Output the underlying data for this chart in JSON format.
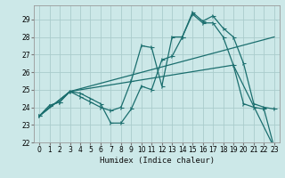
{
  "bg_color": "#cce8e8",
  "grid_color": "#aacccc",
  "line_color": "#1a6e6e",
  "xlabel": "Humidex (Indice chaleur)",
  "xlim": [
    -0.5,
    23.5
  ],
  "ylim": [
    22.0,
    29.8
  ],
  "yticks": [
    22,
    23,
    24,
    25,
    26,
    27,
    28,
    29
  ],
  "xticks": [
    0,
    1,
    2,
    3,
    4,
    5,
    6,
    7,
    8,
    9,
    10,
    11,
    12,
    13,
    14,
    15,
    16,
    17,
    18,
    19,
    20,
    21,
    22,
    23
  ],
  "line1_x": [
    0,
    1,
    2,
    3,
    4,
    5,
    6,
    7,
    8,
    9,
    10,
    11,
    12,
    13,
    14,
    15,
    16,
    17,
    18,
    19,
    20,
    21,
    22,
    23
  ],
  "line1_y": [
    23.5,
    24.1,
    24.3,
    24.9,
    24.8,
    24.5,
    24.2,
    23.1,
    23.1,
    23.9,
    25.2,
    25.0,
    26.7,
    26.9,
    28.0,
    29.4,
    28.9,
    29.2,
    28.5,
    28.0,
    26.5,
    24.2,
    24.0,
    23.9
  ],
  "line2_x": [
    0,
    1,
    2,
    3,
    4,
    5,
    6,
    7,
    8,
    9,
    10,
    11,
    12,
    13,
    14,
    15,
    16,
    17,
    18,
    19,
    20,
    21,
    22,
    23
  ],
  "line2_y": [
    23.5,
    24.1,
    24.3,
    24.9,
    24.6,
    24.3,
    24.0,
    23.8,
    24.0,
    25.5,
    27.5,
    27.4,
    25.2,
    28.0,
    28.0,
    29.3,
    28.8,
    28.8,
    28.0,
    26.4,
    24.2,
    24.0,
    23.9,
    21.7
  ],
  "line3_x": [
    0,
    3,
    23
  ],
  "line3_y": [
    23.5,
    24.9,
    28.0
  ],
  "line4_x": [
    0,
    3,
    19,
    23
  ],
  "line4_y": [
    23.5,
    24.9,
    26.4,
    21.7
  ],
  "xlabel_fontsize": 6.5,
  "tick_fontsize": 5.5,
  "linewidth": 0.9,
  "markersize": 2.8
}
